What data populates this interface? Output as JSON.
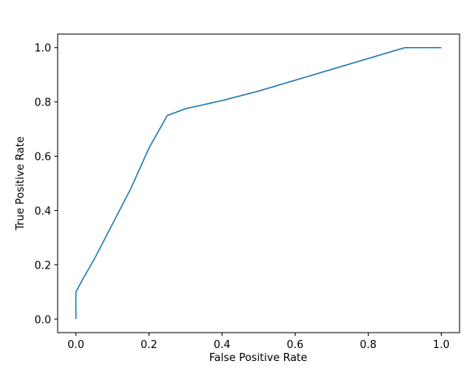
{
  "chart_data": {
    "type": "line",
    "x_label": "False Positive Rate",
    "y_label": "True Positive Rate",
    "x": [
      0,
      0,
      0.02,
      0.05,
      0.1,
      0.15,
      0.2,
      0.25,
      0.3,
      0.35,
      0.4,
      0.5,
      0.6,
      0.7,
      0.8,
      0.9,
      1.0
    ],
    "series": [
      {
        "color": "#1f77b4",
        "values": [
          0,
          0.1,
          0.15,
          0.22,
          0.35,
          0.48,
          0.63,
          0.75,
          0.775,
          0.79,
          0.805,
          0.84,
          0.88,
          0.92,
          0.96,
          1.0,
          1.0
        ]
      }
    ],
    "xlim": [
      -0.05,
      1.05
    ],
    "ylim": [
      -0.05,
      1.05
    ],
    "xticks": [
      {
        "value": 0,
        "label": "0.0"
      },
      0.2,
      0.4,
      0.6,
      0.8,
      {
        "value": 1,
        "label": "1.0"
      }
    ],
    "yticks": [
      {
        "value": 0,
        "label": "0.0"
      },
      0.2,
      0.4,
      0.6,
      0.8,
      {
        "value": 1,
        "label": "1.0"
      }
    ],
    "grid": false
  }
}
